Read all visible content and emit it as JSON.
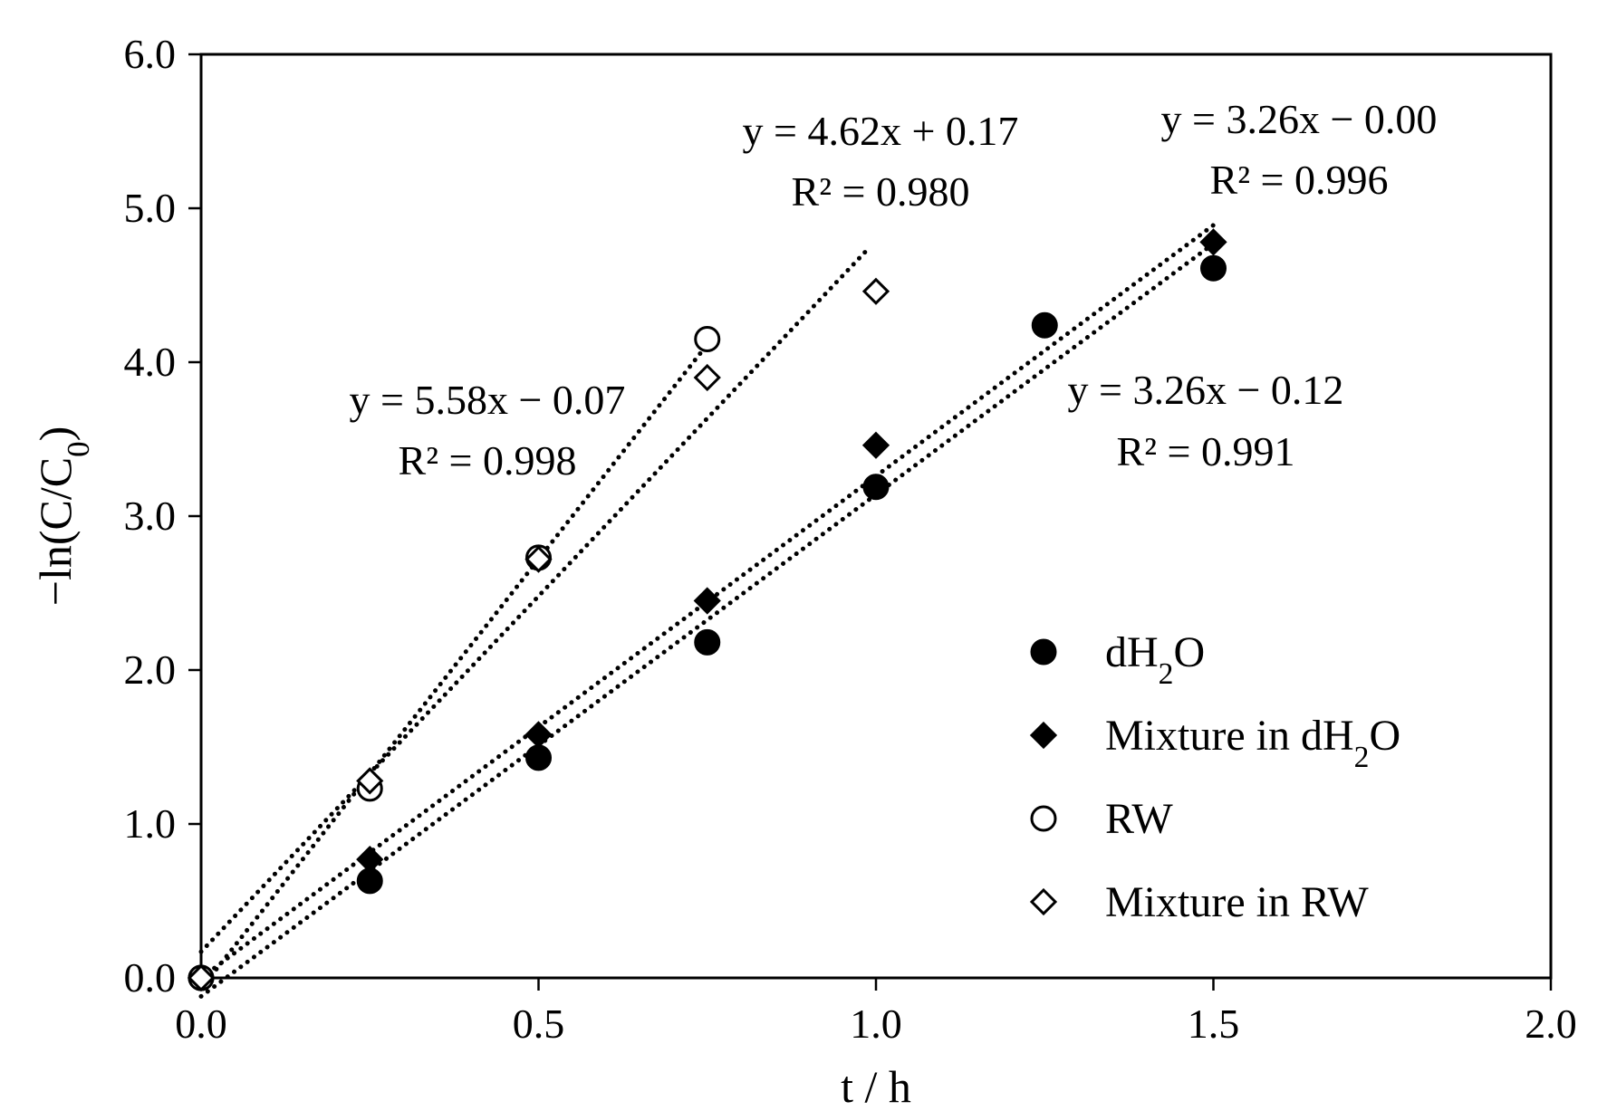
{
  "chart_data": {
    "type": "scatter",
    "xlabel": "t / h",
    "ylabel": "−ln(C/C0)",
    "xlim": [
      0,
      2
    ],
    "ylim": [
      0,
      6
    ],
    "x_ticks": [
      "0.0",
      "0.5",
      "1.0",
      "1.5",
      "2.0"
    ],
    "y_ticks": [
      "0.0",
      "1.0",
      "2.0",
      "3.0",
      "4.0",
      "5.0",
      "6.0"
    ],
    "grid": false,
    "legend_position": "center-right",
    "series": [
      {
        "name": "dH2O",
        "marker": "filled-circle",
        "x": [
          0,
          0.25,
          0.5,
          0.75,
          1.0,
          1.25,
          1.5
        ],
        "y": [
          0,
          0.63,
          1.43,
          2.18,
          3.19,
          4.24,
          4.61
        ],
        "trendline": {
          "slope": 3.26,
          "intercept": -0.12,
          "x_range": [
            0,
            1.5
          ],
          "equation": "y = 3.26x − 0.12",
          "r2": "R² = 0.991"
        }
      },
      {
        "name": "Mixture in dH2O",
        "marker": "filled-diamond",
        "x": [
          0,
          0.25,
          0.5,
          0.75,
          1.0,
          1.5
        ],
        "y": [
          0,
          0.77,
          1.58,
          2.45,
          3.46,
          4.78
        ],
        "trendline": {
          "slope": 3.26,
          "intercept": 0.0,
          "x_range": [
            0,
            1.5
          ],
          "equation": "y = 3.26x − 0.00",
          "r2": "R² = 0.996"
        }
      },
      {
        "name": "RW",
        "marker": "open-circle",
        "x": [
          0,
          0.25,
          0.5,
          0.75
        ],
        "y": [
          0,
          1.23,
          2.73,
          4.15
        ],
        "trendline": {
          "slope": 5.58,
          "intercept": -0.07,
          "x_range": [
            0,
            0.75
          ],
          "equation": "y = 5.58x − 0.07",
          "r2": "R² = 0.998"
        }
      },
      {
        "name": "Mixture in RW",
        "marker": "open-diamond",
        "x": [
          0,
          0.25,
          0.5,
          0.75,
          1.0
        ],
        "y": [
          0,
          1.28,
          2.72,
          3.9,
          4.46
        ],
        "trendline": {
          "slope": 4.62,
          "intercept": 0.17,
          "x_range": [
            0,
            0.99
          ],
          "equation": "y = 4.62x + 0.17",
          "r2": "R² = 0.980"
        }
      }
    ]
  }
}
